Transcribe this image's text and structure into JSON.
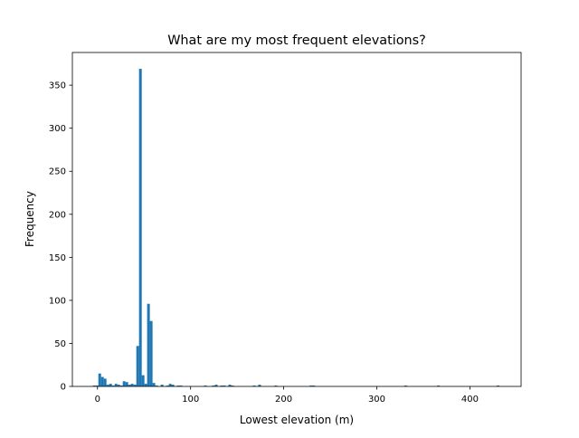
{
  "chart_data": {
    "type": "bar",
    "title": "What are my most frequent elevations?",
    "xlabel": "Lowest elevation (m)",
    "ylabel": "Frequency",
    "xlim": [
      -27,
      455
    ],
    "ylim": [
      0,
      388
    ],
    "xticks": [
      0,
      100,
      200,
      300,
      400
    ],
    "yticks": [
      0,
      50,
      100,
      150,
      200,
      250,
      300,
      350
    ],
    "grid": false,
    "bar_color": "#1f77b4",
    "bin_width": 2.91,
    "bins": [
      {
        "x0": -4.9,
        "count": 1
      },
      {
        "x0": -2.0,
        "count": 1
      },
      {
        "x0": 0.9,
        "count": 15
      },
      {
        "x0": 3.8,
        "count": 11
      },
      {
        "x0": 6.7,
        "count": 9
      },
      {
        "x0": 9.7,
        "count": 2
      },
      {
        "x0": 12.6,
        "count": 3
      },
      {
        "x0": 15.5,
        "count": 1
      },
      {
        "x0": 18.4,
        "count": 3
      },
      {
        "x0": 21.3,
        "count": 2
      },
      {
        "x0": 24.2,
        "count": 1
      },
      {
        "x0": 27.1,
        "count": 6
      },
      {
        "x0": 30.0,
        "count": 5
      },
      {
        "x0": 32.9,
        "count": 2
      },
      {
        "x0": 35.8,
        "count": 3
      },
      {
        "x0": 38.8,
        "count": 2
      },
      {
        "x0": 41.7,
        "count": 47
      },
      {
        "x0": 44.6,
        "count": 369
      },
      {
        "x0": 47.5,
        "count": 13
      },
      {
        "x0": 50.4,
        "count": 3
      },
      {
        "x0": 53.3,
        "count": 96
      },
      {
        "x0": 56.2,
        "count": 76
      },
      {
        "x0": 59.1,
        "count": 4
      },
      {
        "x0": 62.0,
        "count": 1
      },
      {
        "x0": 67.9,
        "count": 2
      },
      {
        "x0": 73.7,
        "count": 1
      },
      {
        "x0": 76.6,
        "count": 3
      },
      {
        "x0": 79.5,
        "count": 2
      },
      {
        "x0": 85.3,
        "count": 1
      },
      {
        "x0": 88.2,
        "count": 1
      },
      {
        "x0": 114.4,
        "count": 1
      },
      {
        "x0": 123.1,
        "count": 1
      },
      {
        "x0": 126.1,
        "count": 2
      },
      {
        "x0": 131.9,
        "count": 1
      },
      {
        "x0": 134.8,
        "count": 1
      },
      {
        "x0": 140.6,
        "count": 2
      },
      {
        "x0": 143.5,
        "count": 1
      },
      {
        "x0": 166.8,
        "count": 1
      },
      {
        "x0": 172.6,
        "count": 2
      },
      {
        "x0": 190.1,
        "count": 1
      },
      {
        "x0": 227.9,
        "count": 1
      },
      {
        "x0": 230.8,
        "count": 1
      },
      {
        "x0": 329.7,
        "count": 1
      },
      {
        "x0": 364.7,
        "count": 1
      },
      {
        "x0": 428.7,
        "count": 1
      }
    ]
  }
}
